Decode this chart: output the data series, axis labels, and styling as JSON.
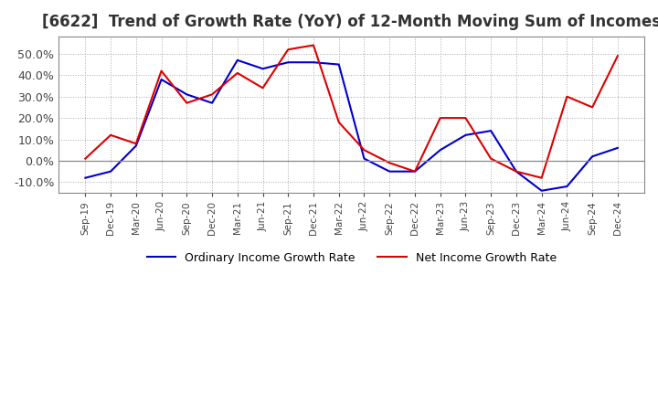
{
  "title": "[6622]  Trend of Growth Rate (YoY) of 12-Month Moving Sum of Incomes",
  "title_fontsize": 12,
  "ylim": [
    -15,
    58
  ],
  "yticks": [
    -10.0,
    0.0,
    10.0,
    20.0,
    30.0,
    40.0,
    50.0
  ],
  "background_color": "#ffffff",
  "grid_color": "#aaaaaa",
  "ordinary_color": "#0000cc",
  "net_color": "#dd0000",
  "legend_labels": [
    "Ordinary Income Growth Rate",
    "Net Income Growth Rate"
  ],
  "dates": [
    "Sep-19",
    "Dec-19",
    "Mar-20",
    "Jun-20",
    "Sep-20",
    "Dec-20",
    "Mar-21",
    "Jun-21",
    "Sep-21",
    "Dec-21",
    "Mar-22",
    "Jun-22",
    "Sep-22",
    "Dec-22",
    "Mar-23",
    "Jun-23",
    "Sep-23",
    "Dec-23",
    "Mar-24",
    "Jun-24",
    "Sep-24",
    "Dec-24"
  ],
  "ordinary": [
    -8,
    -5,
    7,
    38,
    31,
    27,
    47,
    43,
    46,
    46,
    45,
    1,
    -5,
    -5,
    5,
    12,
    14,
    -5,
    -14,
    -12,
    2,
    6
  ],
  "net": [
    1,
    12,
    8,
    42,
    27,
    31,
    41,
    34,
    52,
    54,
    18,
    5,
    -1,
    -5,
    20,
    20,
    1,
    -5,
    -8,
    30,
    25,
    49
  ]
}
